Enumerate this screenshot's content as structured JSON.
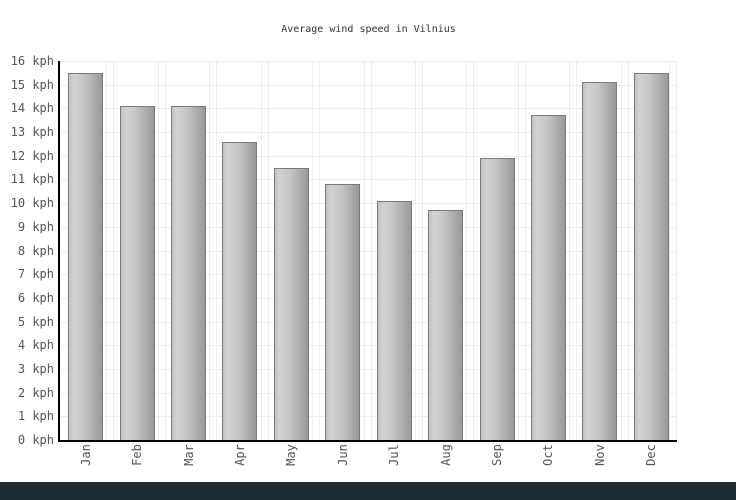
{
  "title": "Average wind speed in Vilnius",
  "chart_data": {
    "type": "bar",
    "title": "Average wind speed in Vilnius",
    "categories": [
      "Jan",
      "Feb",
      "Mar",
      "Apr",
      "May",
      "Jun",
      "Jul",
      "Aug",
      "Sep",
      "Oct",
      "Nov",
      "Dec"
    ],
    "values": [
      15.5,
      14.1,
      14.1,
      12.6,
      11.5,
      10.8,
      10.1,
      9.7,
      11.9,
      13.7,
      15.1,
      15.5
    ],
    "xlabel": "",
    "ylabel": "kph",
    "ylim": [
      0,
      16
    ],
    "ytick_step": 1,
    "ytick_labels": [
      "0 kph",
      "1 kph",
      "2 kph",
      "3 kph",
      "4 kph",
      "5 kph",
      "6 kph",
      "7 kph",
      "8 kph",
      "9 kph",
      "10 kph",
      "11 kph",
      "12 kph",
      "13 kph",
      "14 kph",
      "15 kph",
      "16 kph"
    ],
    "grid": true,
    "legend": "none",
    "bar_gradient_left": "#c2c2c2",
    "bar_gradient_light": "#d2d2d2",
    "bar_gradient_dark": "#999999",
    "bar_border_color": "#7a7a7a"
  },
  "colors": {
    "background": "#ffffff",
    "axis": "#000000",
    "gridline": "#ededed",
    "title_text": "#333333",
    "tick_text": "#555555",
    "footer": "#1d2c34"
  }
}
